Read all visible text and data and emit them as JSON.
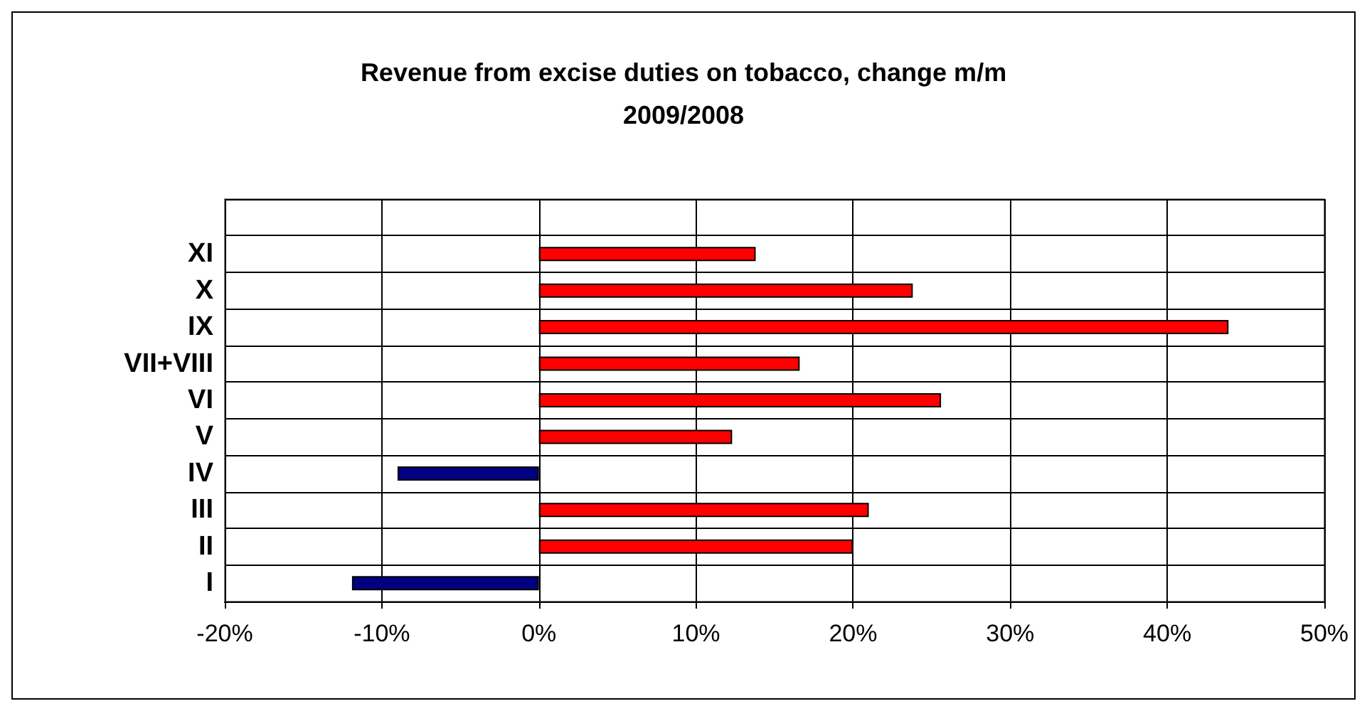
{
  "chart_data": {
    "type": "bar",
    "orientation": "horizontal",
    "title": "Revenue from excise duties on tobacco, change m/m\n2009/2008",
    "categories": [
      null,
      "XI",
      "X",
      "IX",
      "VII+VIII",
      "VI",
      "V",
      "IV",
      "III",
      "II",
      "I"
    ],
    "values": [
      null,
      13.8,
      23.8,
      43.9,
      16.6,
      25.6,
      12.3,
      -9.0,
      21.0,
      20.0,
      -11.9
    ],
    "colors": [
      null,
      "#ff0000",
      "#ff0000",
      "#ff0000",
      "#ff0000",
      "#ff0000",
      "#ff0000",
      "#000080",
      "#ff0000",
      "#ff0000",
      "#000080"
    ],
    "xlim": [
      -20,
      50
    ],
    "xticks": [
      {
        "value": -20,
        "label": "-20%"
      },
      {
        "value": -10,
        "label": "-10%"
      },
      {
        "value": 0,
        "label": "0%"
      },
      {
        "value": 10,
        "label": "10%"
      },
      {
        "value": 20,
        "label": "20%"
      },
      {
        "value": 30,
        "label": "30%"
      },
      {
        "value": 40,
        "label": "40%"
      },
      {
        "value": 50,
        "label": "50%"
      }
    ],
    "grid": true
  }
}
